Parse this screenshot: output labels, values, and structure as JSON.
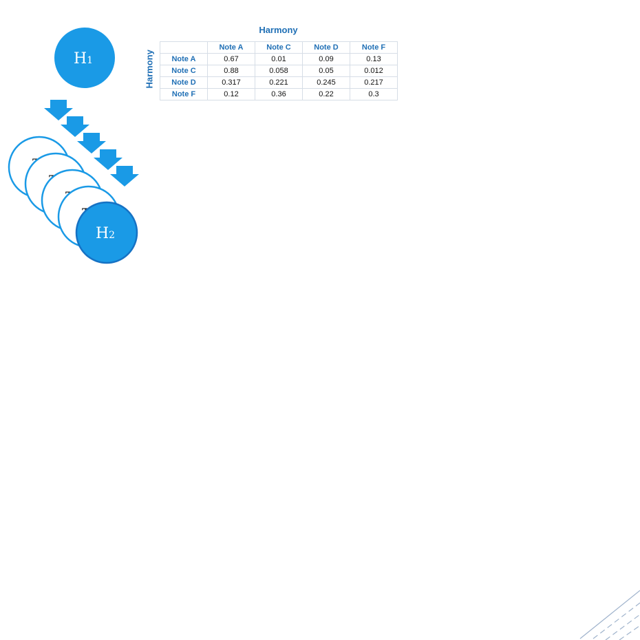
{
  "nodes": {
    "h1": {
      "letter": "H",
      "sub": "1"
    },
    "h2": {
      "letter": "H",
      "sub": "2"
    },
    "ghost_labels": [
      "T",
      "T",
      "T",
      "T"
    ]
  },
  "matrix": {
    "title": "Harmony",
    "side_label": "Harmony",
    "columns": [
      "Note A",
      "Note C",
      "Note D",
      "Note F"
    ],
    "rows": [
      {
        "label": "Note A",
        "values": [
          "0.67",
          "0.01",
          "0.09",
          "0.13"
        ]
      },
      {
        "label": "Note C",
        "values": [
          "0.88",
          "0.058",
          "0.05",
          "0.012"
        ]
      },
      {
        "label": "Note D",
        "values": [
          "0.317",
          "0.221",
          "0.245",
          "0.217"
        ]
      },
      {
        "label": "Note F",
        "values": [
          "0.12",
          "0.36",
          "0.22",
          "0.3"
        ]
      }
    ]
  },
  "colors": {
    "node_fill": "#1a9ae6",
    "node_stroke": "#1672c4",
    "ghost_stroke": "#1a9ae6",
    "arrow_fill": "#1a9ae6",
    "accent_text": "#1f6fb5",
    "corner_lines": "#9fb3cc"
  }
}
